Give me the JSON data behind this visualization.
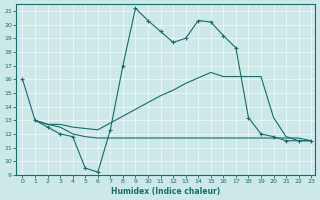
{
  "xlabel": "Humidex (Indice chaleur)",
  "bg_color": "#cce8e8",
  "line_color": "#1a6b6b",
  "xlim": [
    -0.5,
    23.3
  ],
  "ylim": [
    9,
    21.5
  ],
  "xticks": [
    0,
    1,
    2,
    3,
    4,
    5,
    6,
    7,
    8,
    9,
    10,
    11,
    12,
    13,
    14,
    15,
    16,
    17,
    18,
    19,
    20,
    21,
    22,
    23
  ],
  "yticks": [
    9,
    10,
    11,
    12,
    13,
    14,
    15,
    16,
    17,
    18,
    19,
    20,
    21
  ],
  "line1_x": [
    0,
    1,
    2,
    3,
    4,
    5,
    6,
    7,
    8,
    9,
    10,
    11,
    12,
    13,
    14,
    15,
    16,
    17,
    18,
    19,
    20,
    21,
    22,
    23
  ],
  "line1_y": [
    16,
    13,
    12.5,
    12,
    11.8,
    9.5,
    9.2,
    12.3,
    17.0,
    21.2,
    20.3,
    19.5,
    18.7,
    19.0,
    20.3,
    20.2,
    19.2,
    18.3,
    13.2,
    12.0,
    11.8,
    11.5,
    11.5,
    11.5
  ],
  "line2_x": [
    1,
    2,
    3,
    4,
    5,
    6,
    7,
    8,
    9,
    10,
    11,
    12,
    13,
    14,
    15,
    16,
    17,
    18,
    19,
    20,
    21,
    22,
    23
  ],
  "line2_y": [
    13,
    12.7,
    12.7,
    12.5,
    12.4,
    12.3,
    12.8,
    13.3,
    13.8,
    14.3,
    14.8,
    15.2,
    15.7,
    16.1,
    16.5,
    16.2,
    16.2,
    16.2,
    16.2,
    13.2,
    11.8,
    11.5,
    11.5
  ],
  "line3_x": [
    1,
    2,
    3,
    4,
    5,
    6,
    7,
    8,
    9,
    10,
    11,
    12,
    13,
    14,
    15,
    16,
    17,
    18,
    19,
    20,
    21,
    22,
    23
  ],
  "line3_y": [
    13,
    12.7,
    12.5,
    12.0,
    11.8,
    11.7,
    11.7,
    11.7,
    11.7,
    11.7,
    11.7,
    11.7,
    11.7,
    11.7,
    11.7,
    11.7,
    11.7,
    11.7,
    11.7,
    11.7,
    11.7,
    11.7,
    11.5
  ]
}
